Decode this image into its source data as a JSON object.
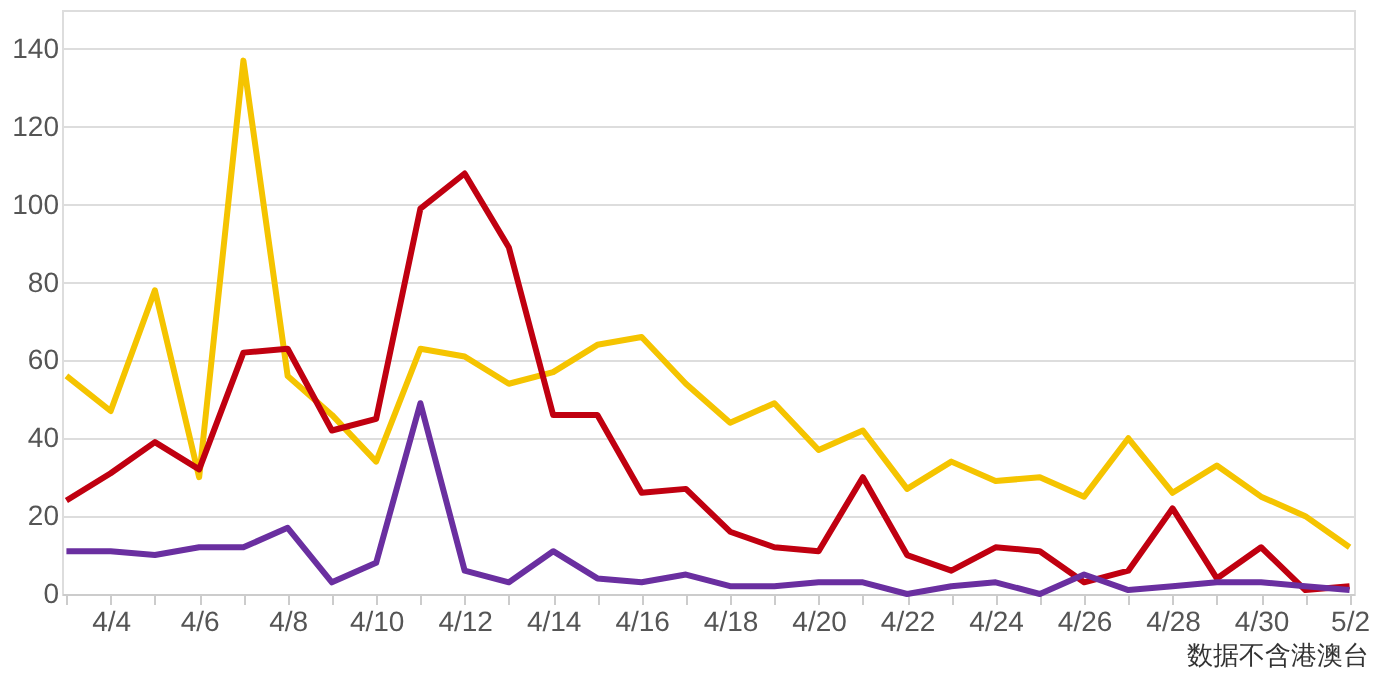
{
  "chart_data": {
    "type": "line",
    "categories": [
      null,
      "4/4",
      null,
      "4/6",
      null,
      "4/8",
      null,
      "4/10",
      null,
      "4/12",
      null,
      "4/14",
      null,
      "4/16",
      null,
      "4/18",
      null,
      "4/20",
      null,
      "4/22",
      null,
      "4/24",
      null,
      "4/26",
      null,
      "4/28",
      null,
      "4/30",
      null,
      "5/2"
    ],
    "series": [
      {
        "color": "#f5c400",
        "values": [
          56,
          47,
          78,
          30,
          137,
          56,
          46,
          34,
          63,
          61,
          54,
          57,
          64,
          66,
          54,
          44,
          49,
          37,
          42,
          27,
          34,
          29,
          30,
          25,
          40,
          26,
          33,
          25,
          20,
          12
        ]
      },
      {
        "color": "#c00010",
        "values": [
          24,
          31,
          39,
          32,
          62,
          63,
          42,
          45,
          99,
          108,
          89,
          46,
          46,
          26,
          27,
          16,
          12,
          11,
          30,
          10,
          6,
          12,
          11,
          3,
          6,
          22,
          4,
          12,
          1,
          2
        ]
      },
      {
        "color": "#6a2fa0",
        "values": [
          11,
          11,
          10,
          12,
          12,
          17,
          3,
          8,
          49,
          6,
          3,
          11,
          4,
          3,
          5,
          2,
          2,
          3,
          3,
          0,
          2,
          3,
          0,
          5,
          1,
          2,
          3,
          3,
          2,
          1
        ]
      }
    ],
    "ylim": [
      0,
      150
    ],
    "yticks": [
      0,
      20,
      40,
      60,
      80,
      100,
      120,
      140
    ],
    "grid": "y",
    "legend": false,
    "marker": "none",
    "line_style": "solid",
    "annotations": [
      "数据不含港澳台"
    ]
  }
}
